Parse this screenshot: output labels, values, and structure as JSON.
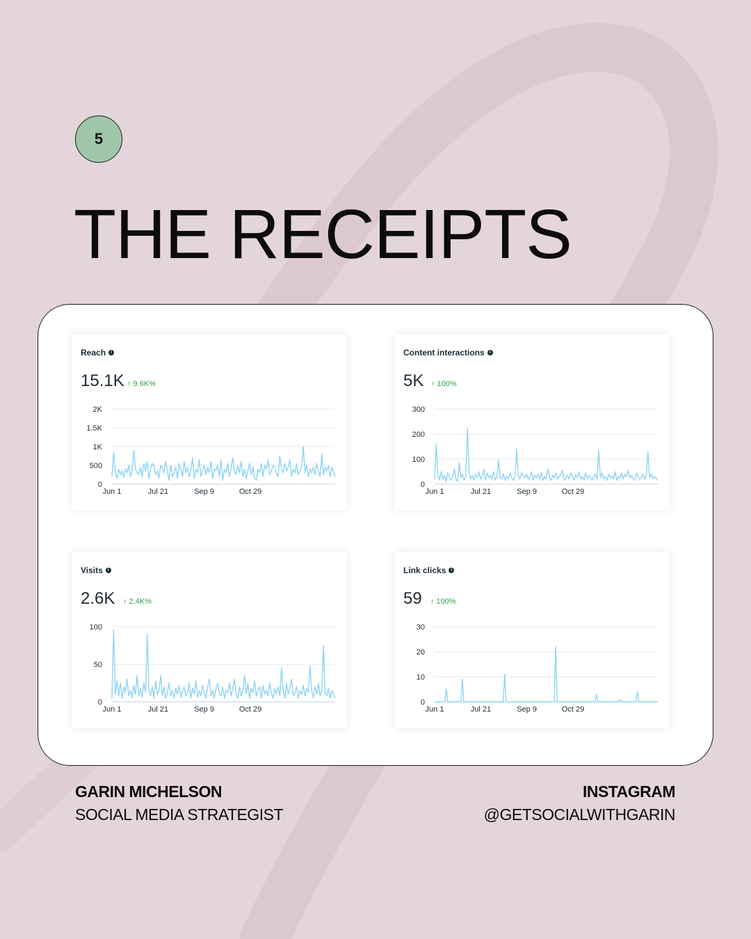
{
  "badge": {
    "number": "5"
  },
  "title": "THE RECEIPTS",
  "footer": {
    "name": "GARIN MICHELSON",
    "role": "SOCIAL MEDIA STRATEGIST",
    "platform": "INSTAGRAM",
    "handle": "@GETSOCIALWITHGARIN"
  },
  "colors": {
    "background": "#e3d5da",
    "badge": "#9fc6a9",
    "line": "#8fd3f4",
    "change": "#31a24c"
  },
  "chart_data": [
    {
      "type": "line",
      "title": "Reach",
      "value": "15.1K",
      "change": "↑ 9.6K%",
      "x_ticks": [
        "Jun 1",
        "Jul 21",
        "Sep 9",
        "Oct 29"
      ],
      "y_ticks": [
        "0",
        "500",
        "1K",
        "1.5K",
        "2K"
      ],
      "ylim": [
        0,
        2000
      ],
      "series": [
        {
          "values": [
            200,
            850,
            300,
            150,
            400,
            250,
            350,
            180,
            400,
            300,
            500,
            200,
            350,
            900,
            400,
            300,
            250,
            450,
            200,
            550,
            350,
            600,
            150,
            400,
            550,
            500,
            250,
            350,
            150,
            500,
            400,
            300,
            600,
            350,
            100,
            500,
            200,
            300,
            450,
            150,
            550,
            400,
            200,
            600,
            300,
            450,
            200,
            350,
            700,
            150,
            400,
            300,
            650,
            200,
            350,
            500,
            250,
            450,
            300,
            600,
            150,
            400,
            350,
            500,
            200,
            650,
            100,
            400,
            300,
            550,
            200,
            450,
            700,
            350,
            250,
            500,
            300,
            600,
            200,
            400,
            150,
            350,
            550,
            250,
            450,
            150,
            100,
            400,
            300,
            550,
            200,
            500,
            400,
            650,
            250,
            350,
            500,
            450,
            300,
            200,
            750,
            400,
            300,
            550,
            350,
            450,
            650,
            200,
            400,
            300,
            550,
            250,
            350,
            450,
            1000,
            300,
            500,
            200,
            400,
            300,
            450,
            250,
            550,
            350,
            200,
            800,
            250,
            450,
            350,
            500,
            200,
            450,
            300,
            200
          ]
        }
      ]
    },
    {
      "type": "line",
      "title": "Content interactions",
      "value": "5K",
      "change": "↑ 100%",
      "x_ticks": [
        "Jun 1",
        "Jul 21",
        "Sep 9",
        "Oct 29"
      ],
      "y_ticks": [
        "0",
        "100",
        "200",
        "300"
      ],
      "ylim": [
        0,
        300
      ],
      "series": [
        {
          "values": [
            20,
            160,
            40,
            15,
            50,
            20,
            35,
            10,
            45,
            25,
            15,
            30,
            60,
            20,
            10,
            85,
            25,
            40,
            15,
            30,
            220,
            50,
            20,
            35,
            15,
            40,
            25,
            50,
            20,
            30,
            60,
            15,
            45,
            25,
            35,
            20,
            50,
            15,
            30,
            95,
            25,
            20,
            40,
            15,
            30,
            20,
            45,
            25,
            15,
            35,
            140,
            30,
            20,
            45,
            35,
            25,
            40,
            20,
            30,
            50,
            15,
            35,
            25,
            40,
            20,
            45,
            15,
            30,
            20,
            60,
            25,
            15,
            35,
            25,
            45,
            20,
            30,
            40,
            55,
            15,
            25,
            35,
            20,
            45,
            30,
            15,
            40,
            25,
            50,
            20,
            30,
            15,
            45,
            20,
            35,
            25,
            15,
            30,
            40,
            20,
            135,
            25,
            45,
            20,
            30,
            15,
            40,
            25,
            35,
            20,
            50,
            15,
            30,
            25,
            45,
            20,
            40,
            30,
            55,
            25,
            35,
            20,
            15,
            45,
            30,
            20,
            25,
            40,
            20,
            35,
            130,
            25,
            40,
            20,
            30,
            25,
            15
          ]
        }
      ]
    },
    {
      "type": "line",
      "title": "Visits",
      "value": "2.6K",
      "change": "↑ 2.4K%",
      "x_ticks": [
        "Jun 1",
        "Jul 21",
        "Sep 9",
        "Oct 29"
      ],
      "y_ticks": [
        "0",
        "50",
        "100"
      ],
      "ylim": [
        0,
        100
      ],
      "series": [
        {
          "values": [
            5,
            96,
            10,
            28,
            8,
            25,
            5,
            20,
            12,
            30,
            8,
            15,
            5,
            22,
            10,
            35,
            8,
            18,
            6,
            25,
            12,
            90,
            15,
            8,
            20,
            5,
            28,
            10,
            15,
            35,
            8,
            20,
            5,
            12,
            25,
            8,
            15,
            5,
            18,
            10,
            22,
            6,
            15,
            20,
            8,
            12,
            25,
            5,
            18,
            10,
            28,
            6,
            15,
            8,
            22,
            12,
            5,
            20,
            30,
            8,
            15,
            5,
            18,
            25,
            10,
            8,
            20,
            5,
            15,
            12,
            25,
            8,
            18,
            30,
            10,
            5,
            20,
            8,
            15,
            35,
            10,
            25,
            5,
            18,
            12,
            28,
            8,
            15,
            20,
            5,
            22,
            10,
            15,
            8,
            25,
            12,
            5,
            18,
            10,
            20,
            8,
            45,
            15,
            5,
            25,
            10,
            18,
            30,
            8,
            12,
            20,
            5,
            15,
            10,
            22,
            8,
            18,
            12,
            48,
            15,
            5,
            20,
            10,
            25,
            8,
            15,
            75,
            12,
            8,
            18,
            5,
            15,
            10,
            5
          ]
        }
      ]
    },
    {
      "type": "line",
      "title": "Link clicks",
      "value": "59",
      "change": "↑ 100%",
      "x_ticks": [
        "Jun 1",
        "Jul 21",
        "Sep 9",
        "Oct 29"
      ],
      "y_ticks": [
        "0",
        "10",
        "20",
        "30"
      ],
      "ylim": [
        0,
        30
      ],
      "series": [
        {
          "values": [
            0,
            0,
            0,
            0,
            0,
            0,
            0,
            0,
            5,
            0,
            0,
            0,
            0,
            0,
            0,
            0,
            0,
            0,
            0,
            9,
            0,
            0,
            0,
            0,
            0,
            0,
            0,
            0,
            0,
            0,
            0,
            0,
            0,
            0,
            0,
            0,
            0,
            0,
            0,
            0,
            0,
            0,
            0,
            0,
            0,
            0,
            0,
            0,
            11,
            0,
            0,
            0,
            0,
            0,
            0,
            0,
            0,
            0,
            0,
            0,
            0,
            0,
            0,
            0,
            0,
            0,
            0,
            0,
            0,
            0,
            0,
            0,
            0,
            0,
            0,
            0,
            0,
            0,
            0,
            0,
            0,
            0,
            0,
            22,
            0,
            0,
            0,
            0,
            0,
            0,
            0,
            0,
            0,
            0,
            0,
            0,
            0,
            0,
            0,
            0,
            0,
            0,
            0,
            0,
            0,
            0,
            0,
            0,
            0,
            0,
            0,
            3,
            0,
            0,
            0,
            0,
            0,
            0,
            0,
            0,
            0,
            0,
            0,
            0,
            0,
            0,
            0,
            1,
            0,
            0,
            0,
            0,
            0,
            0,
            0,
            0,
            0,
            0,
            0,
            4,
            0,
            0,
            0,
            0,
            0,
            0,
            0,
            0,
            0,
            0,
            0,
            0,
            0,
            0
          ]
        }
      ]
    }
  ]
}
